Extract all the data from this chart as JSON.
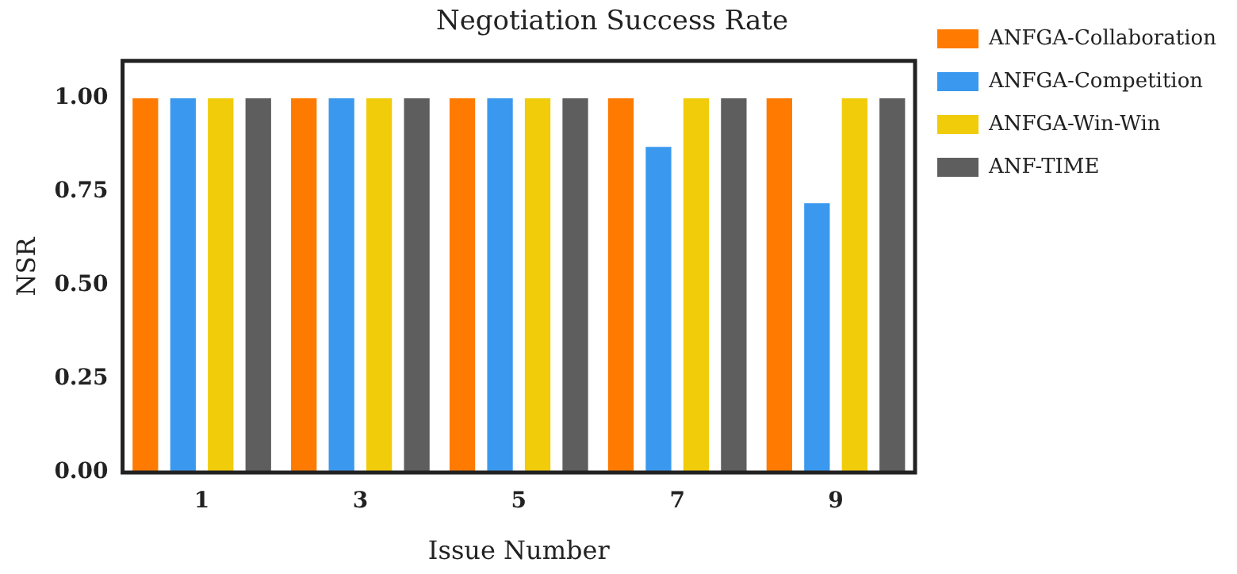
{
  "chart_data": {
    "type": "bar",
    "title": "Negotiation Success Rate",
    "xlabel": "Issue Number",
    "ylabel": "NSR",
    "categories": [
      "1",
      "3",
      "5",
      "7",
      "9"
    ],
    "series": [
      {
        "name": "ANFGA-Collaboration",
        "color": "#fe7a00",
        "values": [
          1,
          1,
          1,
          1,
          1
        ]
      },
      {
        "name": "ANFGA-Competition",
        "color": "#3a99ee",
        "values": [
          1,
          1,
          1,
          0.87,
          0.72
        ]
      },
      {
        "name": "ANFGA-Win-Win",
        "color": "#f0cc0a",
        "values": [
          1,
          1,
          1,
          1,
          1
        ]
      },
      {
        "name": "ANF-TIME",
        "color": "#5e5e5e",
        "values": [
          1,
          1,
          1,
          1,
          1
        ]
      }
    ],
    "ylim": [
      0,
      1.1
    ],
    "yticks": [
      {
        "value": 0,
        "label": "0.00"
      },
      {
        "value": 0.25,
        "label": "0.25"
      },
      {
        "value": 0.5,
        "label": "0.50"
      },
      {
        "value": 0.75,
        "label": "0.75"
      },
      {
        "value": 1,
        "label": "1.00"
      }
    ],
    "grid": false,
    "legend": "right"
  }
}
